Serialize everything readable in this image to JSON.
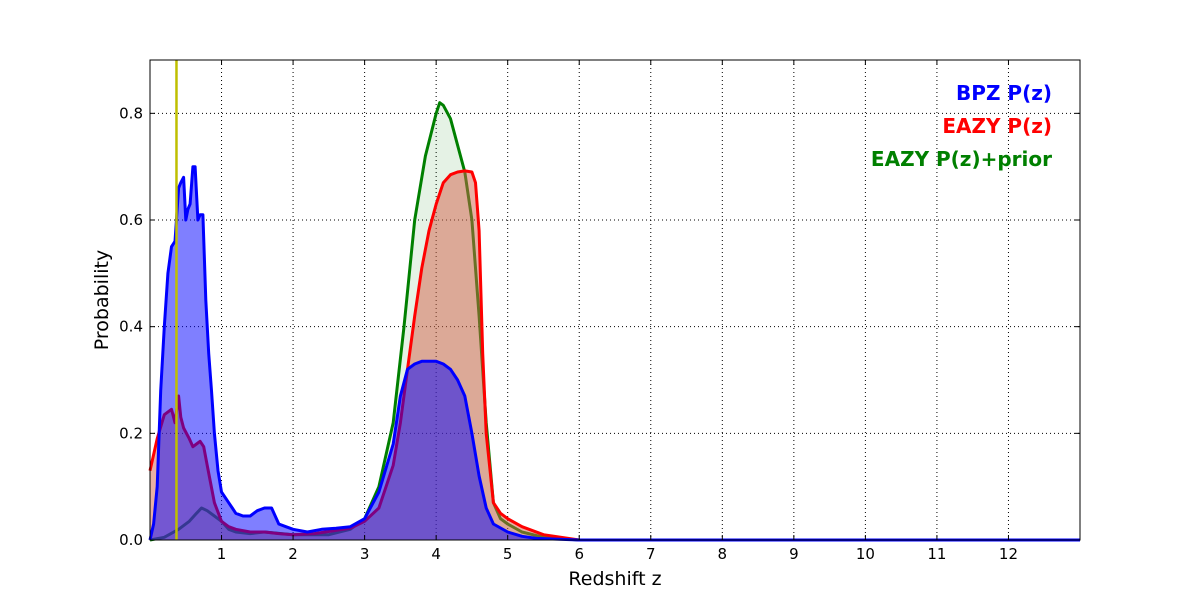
{
  "chart_data": {
    "type": "area",
    "title": "",
    "xlabel": "Redshift z",
    "ylabel": "Probability",
    "xlim": [
      0.0,
      13.0
    ],
    "ylim": [
      0.0,
      0.9
    ],
    "grid": true,
    "grid_style": "dotted",
    "legend_placement": "top-right",
    "x_ticks": [
      "1",
      "2",
      "3",
      "4",
      "5",
      "6",
      "7",
      "8",
      "9",
      "10",
      "11",
      "12"
    ],
    "y_ticks": [
      "0.0",
      "0.2",
      "0.4",
      "0.6",
      "0.8"
    ],
    "x_tick_values": [
      1,
      2,
      3,
      4,
      5,
      6,
      7,
      8,
      9,
      10,
      11,
      12
    ],
    "y_tick_values": [
      0.0,
      0.2,
      0.4,
      0.6,
      0.8
    ],
    "reference_line": {
      "x": 0.37,
      "color": "#bfbf00"
    },
    "series": [
      {
        "name": "EAZY P(z)+prior",
        "color": "#008000",
        "fill_color": "#008000",
        "fill_opacity": 0.1,
        "x": [
          0.0,
          0.2,
          0.4,
          0.55,
          0.65,
          0.72,
          0.8,
          0.9,
          1.0,
          1.1,
          1.2,
          1.4,
          1.6,
          2.0,
          2.5,
          2.8,
          3.0,
          3.2,
          3.4,
          3.55,
          3.7,
          3.85,
          4.0,
          4.05,
          4.1,
          4.2,
          4.3,
          4.4,
          4.5,
          4.6,
          4.7,
          4.8,
          4.9,
          5.0,
          5.2,
          5.5,
          6.0,
          13.0
        ],
        "values": [
          0.0,
          0.005,
          0.02,
          0.035,
          0.05,
          0.06,
          0.055,
          0.045,
          0.035,
          0.02,
          0.015,
          0.012,
          0.015,
          0.01,
          0.01,
          0.02,
          0.04,
          0.1,
          0.22,
          0.4,
          0.6,
          0.72,
          0.8,
          0.82,
          0.815,
          0.79,
          0.74,
          0.69,
          0.6,
          0.42,
          0.22,
          0.07,
          0.04,
          0.03,
          0.015,
          0.005,
          0.0,
          0.0
        ]
      },
      {
        "name": "EAZY P(z)",
        "color": "#ff0000",
        "fill_color": "#d35f4a",
        "fill_opacity": 0.5,
        "x": [
          0.0,
          0.1,
          0.2,
          0.3,
          0.35,
          0.4,
          0.43,
          0.47,
          0.55,
          0.6,
          0.65,
          0.7,
          0.75,
          0.8,
          0.9,
          1.0,
          1.1,
          1.2,
          1.4,
          1.6,
          1.8,
          2.0,
          2.3,
          2.6,
          2.8,
          3.0,
          3.2,
          3.4,
          3.5,
          3.6,
          3.7,
          3.8,
          3.9,
          4.0,
          4.1,
          4.2,
          4.3,
          4.4,
          4.5,
          4.55,
          4.6,
          4.65,
          4.7,
          4.8,
          4.9,
          5.0,
          5.2,
          5.5,
          6.0,
          13.0
        ],
        "values": [
          0.13,
          0.19,
          0.235,
          0.245,
          0.22,
          0.27,
          0.23,
          0.21,
          0.19,
          0.175,
          0.18,
          0.185,
          0.175,
          0.14,
          0.07,
          0.035,
          0.025,
          0.02,
          0.015,
          0.015,
          0.012,
          0.01,
          0.012,
          0.018,
          0.022,
          0.035,
          0.06,
          0.14,
          0.22,
          0.32,
          0.42,
          0.51,
          0.58,
          0.63,
          0.67,
          0.685,
          0.69,
          0.692,
          0.69,
          0.67,
          0.58,
          0.35,
          0.2,
          0.07,
          0.05,
          0.04,
          0.025,
          0.01,
          0.0,
          0.0
        ]
      },
      {
        "name": "BPZ P(z)",
        "color": "#0000ff",
        "fill_color": "#0000ff",
        "fill_opacity": 0.5,
        "x": [
          0.0,
          0.05,
          0.1,
          0.15,
          0.2,
          0.25,
          0.3,
          0.35,
          0.4,
          0.43,
          0.47,
          0.5,
          0.53,
          0.56,
          0.6,
          0.63,
          0.67,
          0.7,
          0.74,
          0.78,
          0.82,
          0.86,
          0.9,
          0.95,
          1.0,
          1.05,
          1.1,
          1.15,
          1.2,
          1.3,
          1.4,
          1.5,
          1.6,
          1.7,
          1.8,
          1.9,
          2.0,
          2.2,
          2.4,
          2.6,
          2.8,
          3.0,
          3.2,
          3.4,
          3.5,
          3.6,
          3.7,
          3.8,
          3.9,
          4.0,
          4.1,
          4.2,
          4.3,
          4.4,
          4.5,
          4.6,
          4.7,
          4.8,
          5.0,
          5.2,
          5.4,
          6.0,
          13.0
        ],
        "values": [
          0.0,
          0.03,
          0.1,
          0.28,
          0.4,
          0.5,
          0.55,
          0.56,
          0.66,
          0.67,
          0.68,
          0.6,
          0.62,
          0.63,
          0.7,
          0.7,
          0.6,
          0.61,
          0.61,
          0.45,
          0.35,
          0.28,
          0.2,
          0.13,
          0.09,
          0.08,
          0.07,
          0.06,
          0.05,
          0.045,
          0.045,
          0.055,
          0.06,
          0.06,
          0.03,
          0.025,
          0.02,
          0.015,
          0.02,
          0.022,
          0.025,
          0.04,
          0.09,
          0.18,
          0.27,
          0.32,
          0.33,
          0.335,
          0.335,
          0.335,
          0.33,
          0.32,
          0.3,
          0.27,
          0.2,
          0.12,
          0.06,
          0.03,
          0.015,
          0.007,
          0.003,
          0.0,
          0.0
        ]
      }
    ],
    "legend": [
      {
        "label": "BPZ P(z)",
        "color": "#0000ff"
      },
      {
        "label": "EAZY P(z)",
        "color": "#ff0000"
      },
      {
        "label": "EAZY P(z)+prior",
        "color": "#008000"
      }
    ]
  }
}
